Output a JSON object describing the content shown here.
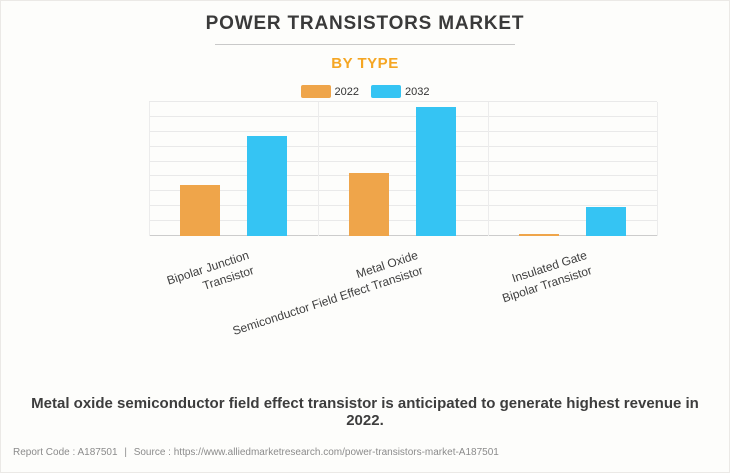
{
  "header": {
    "title": "POWER TRANSISTORS MARKET",
    "subtitle": "BY TYPE"
  },
  "chart_data": {
    "type": "bar",
    "categories": [
      [
        "Bipolar Junction",
        "Transistor"
      ],
      [
        "Metal Oxide",
        "Semiconductor Field Effect Transistor"
      ],
      [
        "Insulated Gate",
        "Bipolar Transistor"
      ]
    ],
    "series": [
      {
        "name": "2022",
        "color": "#EFA54A",
        "values": [
          3.4,
          4.2,
          0.12
        ]
      },
      {
        "name": "2032",
        "color": "#35C4F3",
        "values": [
          6.7,
          8.65,
          1.95
        ]
      }
    ],
    "ylim": [
      0,
      9
    ],
    "gridline_interval": 1,
    "grid": "horizontal",
    "y_axis_labels_visible": false,
    "legend_position": "top",
    "x_label_rotation_deg": -18
  },
  "caption": "Metal oxide semiconductor field effect transistor is anticipated to generate highest revenue in 2022.",
  "footer": {
    "report_code": "Report Code : A187501",
    "separator": "|",
    "source": "Source : https://www.alliedmarketresearch.com/power-transistors-market-A187501"
  }
}
